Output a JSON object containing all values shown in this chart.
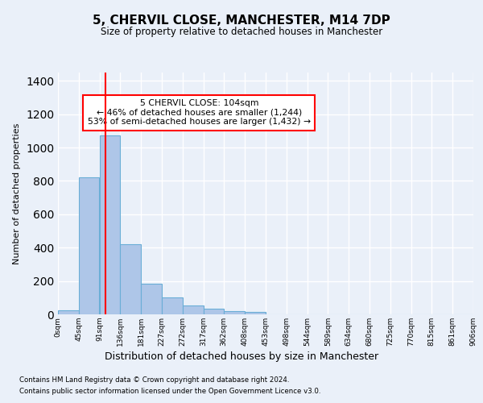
{
  "title": "5, CHERVIL CLOSE, MANCHESTER, M14 7DP",
  "subtitle": "Size of property relative to detached houses in Manchester",
  "xlabel": "Distribution of detached houses by size in Manchester",
  "ylabel": "Number of detached properties",
  "footnote1": "Contains HM Land Registry data © Crown copyright and database right 2024.",
  "footnote2": "Contains public sector information licensed under the Open Government Licence v3.0.",
  "annotation_line1": "5 CHERVIL CLOSE: 104sqm",
  "annotation_line2": "← 46% of detached houses are smaller (1,244)",
  "annotation_line3": "53% of semi-detached houses are larger (1,432) →",
  "bin_labels": [
    "0sqm",
    "45sqm",
    "91sqm",
    "136sqm",
    "181sqm",
    "227sqm",
    "272sqm",
    "317sqm",
    "362sqm",
    "408sqm",
    "453sqm",
    "498sqm",
    "544sqm",
    "589sqm",
    "634sqm",
    "680sqm",
    "725sqm",
    "770sqm",
    "815sqm",
    "861sqm",
    "906sqm"
  ],
  "bar_values": [
    25,
    820,
    1075,
    420,
    185,
    100,
    55,
    33,
    20,
    15,
    0,
    0,
    0,
    0,
    0,
    0,
    0,
    0,
    0,
    0
  ],
  "bar_color": "#aec6e8",
  "bar_edge_color": "#6aaed6",
  "vline_x": 104,
  "vline_color": "red",
  "ylim": [
    0,
    1450
  ],
  "yticks": [
    0,
    200,
    400,
    600,
    800,
    1000,
    1200,
    1400
  ],
  "bg_color": "#eaf0f9",
  "grid_color": "#ffffff",
  "annotation_box_color": "white",
  "annotation_box_edge": "red",
  "bin_starts": [
    0,
    45,
    91,
    136,
    181,
    227,
    272,
    317,
    362,
    408,
    453,
    498,
    544,
    589,
    634,
    680,
    725,
    770,
    815,
    861
  ],
  "bin_width": 45
}
